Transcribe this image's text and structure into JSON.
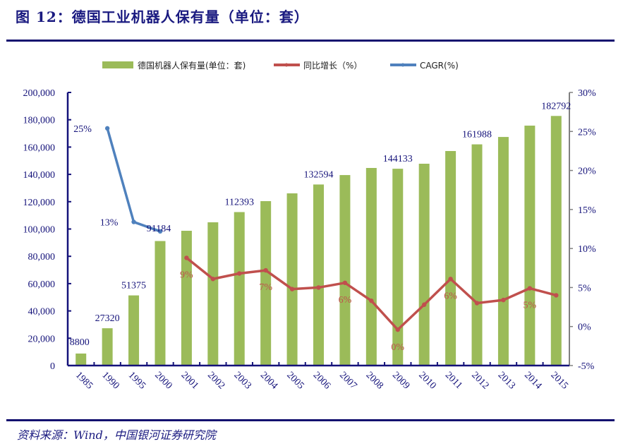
{
  "header": {
    "title": "图 12：德国工业机器人保有量（单位：套）"
  },
  "footer": {
    "source": "资料来源：Wind，中国银河证券研究院"
  },
  "colors": {
    "bar": "#9bbb59",
    "growth": "#c0504d",
    "cagr": "#4f81bd",
    "axis": "#14127a",
    "right_axis": "#808080"
  },
  "chart_data": {
    "type": "bar+line",
    "title": "德国工业机器人保有量（单位：套）",
    "categories": [
      "1985",
      "1990",
      "1995",
      "2000",
      "2001",
      "2002",
      "2003",
      "2004",
      "2005",
      "2006",
      "2007",
      "2008",
      "2009",
      "2010",
      "2011",
      "2012",
      "2013",
      "2014",
      "2015"
    ],
    "legend": {
      "position": "top",
      "entries": [
        "德国机器人保有量(单位：套)",
        "同比增长（%）",
        "CAGR(%)"
      ]
    },
    "left_axis": {
      "ylim": [
        0,
        200000
      ],
      "ticks": [
        0,
        20000,
        40000,
        60000,
        80000,
        100000,
        120000,
        140000,
        160000,
        180000,
        200000
      ],
      "tick_labels": [
        "0",
        "20,000",
        "40,000",
        "60,000",
        "80,000",
        "100,000",
        "120,000",
        "140,000",
        "160,000",
        "180,000",
        "200,000"
      ]
    },
    "right_axis": {
      "ylim": [
        -5,
        30
      ],
      "ticks": [
        -5,
        0,
        5,
        10,
        15,
        20,
        25,
        30
      ],
      "tick_labels": [
        "-5%",
        "0%",
        "5%",
        "10%",
        "15%",
        "20%",
        "25%",
        "30%"
      ]
    },
    "series": [
      {
        "name": "德国机器人保有量(单位：套)",
        "type": "bar",
        "axis": "left",
        "values": [
          8800,
          27320,
          51375,
          91184,
          98700,
          104900,
          112393,
          120400,
          126100,
          132594,
          139500,
          144700,
          144133,
          147800,
          157100,
          161988,
          167400,
          175700,
          182792
        ],
        "labels": [
          {
            "index": 0,
            "text": "8800"
          },
          {
            "index": 1,
            "text": "27320"
          },
          {
            "index": 2,
            "text": "51375"
          },
          {
            "index": 3,
            "text": "91184"
          },
          {
            "index": 6,
            "text": "112393"
          },
          {
            "index": 9,
            "text": "132594"
          },
          {
            "index": 12,
            "text": "144133"
          },
          {
            "index": 15,
            "text": "161988"
          },
          {
            "index": 18,
            "text": "182792"
          }
        ]
      },
      {
        "name": "同比增长（%）",
        "type": "line",
        "axis": "right",
        "values": [
          null,
          null,
          null,
          null,
          8.8,
          6.1,
          6.8,
          7.2,
          4.8,
          5.0,
          5.6,
          3.3,
          -0.4,
          2.8,
          6.1,
          3.0,
          3.4,
          4.9,
          4.0
        ],
        "labels": [
          {
            "index": 4,
            "text": "9%"
          },
          {
            "index": 7,
            "text": "7%"
          },
          {
            "index": 10,
            "text": "6%"
          },
          {
            "index": 12,
            "text": "0%"
          },
          {
            "index": 14,
            "text": "6%"
          },
          {
            "index": 17,
            "text": "5%"
          }
        ]
      },
      {
        "name": "CAGR(%)",
        "type": "line",
        "axis": "right",
        "values": [
          null,
          25.4,
          13.4,
          12.2,
          null,
          null,
          null,
          null,
          null,
          null,
          null,
          null,
          null,
          null,
          null,
          null,
          null,
          null,
          null
        ],
        "labels": [
          {
            "index": 1,
            "text": "25%"
          },
          {
            "index": 2,
            "text": "13%"
          }
        ]
      }
    ]
  }
}
